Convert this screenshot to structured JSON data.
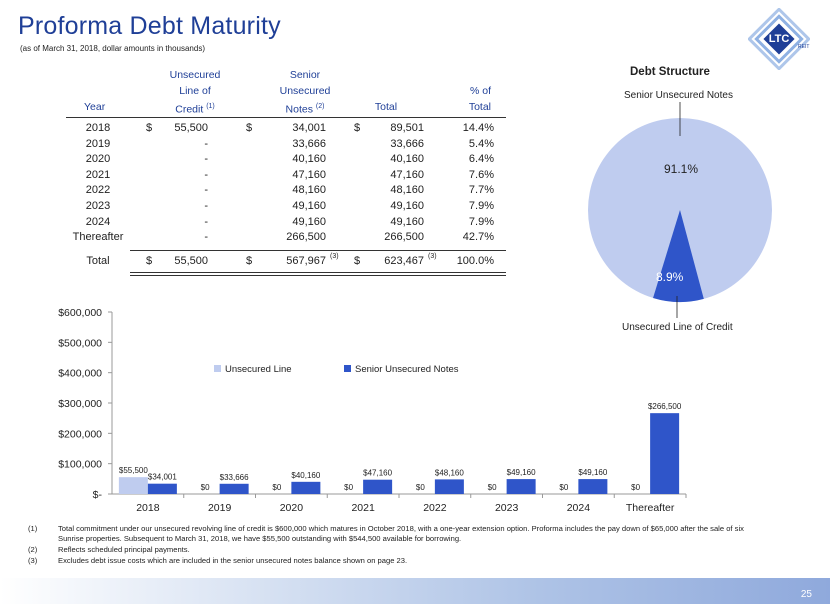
{
  "header": {
    "title": "Proforma Debt Maturity",
    "subtitle": "(as of March 31, 2018, dollar amounts in thousands)",
    "logo_text": "LTC",
    "logo_subtext": "REIT"
  },
  "table": {
    "headers": {
      "year": "Year",
      "unsecured_line1": "Unsecured",
      "unsecured_line2": "Line of",
      "unsecured_line3": "Credit",
      "unsecured_note": "(1)",
      "senior_line1": "Senior",
      "senior_line2": "Unsecured",
      "senior_line3": "Notes",
      "senior_note": "(2)",
      "total": "Total",
      "pct_line1": "% of",
      "pct_line2": "Total"
    },
    "rows": [
      {
        "year": "2018",
        "ulc_sym": "$",
        "ulc": "55,500",
        "sun_sym": "$",
        "sun": "34,001",
        "tot_sym": "$",
        "tot": "89,501",
        "pct": "14.4%"
      },
      {
        "year": "2019",
        "ulc_sym": "",
        "ulc": "-",
        "sun_sym": "",
        "sun": "33,666",
        "tot_sym": "",
        "tot": "33,666",
        "pct": "5.4%"
      },
      {
        "year": "2020",
        "ulc_sym": "",
        "ulc": "-",
        "sun_sym": "",
        "sun": "40,160",
        "tot_sym": "",
        "tot": "40,160",
        "pct": "6.4%"
      },
      {
        "year": "2021",
        "ulc_sym": "",
        "ulc": "-",
        "sun_sym": "",
        "sun": "47,160",
        "tot_sym": "",
        "tot": "47,160",
        "pct": "7.6%"
      },
      {
        "year": "2022",
        "ulc_sym": "",
        "ulc": "-",
        "sun_sym": "",
        "sun": "48,160",
        "tot_sym": "",
        "tot": "48,160",
        "pct": "7.7%"
      },
      {
        "year": "2023",
        "ulc_sym": "",
        "ulc": "-",
        "sun_sym": "",
        "sun": "49,160",
        "tot_sym": "",
        "tot": "49,160",
        "pct": "7.9%"
      },
      {
        "year": "2024",
        "ulc_sym": "",
        "ulc": "-",
        "sun_sym": "",
        "sun": "49,160",
        "tot_sym": "",
        "tot": "49,160",
        "pct": "7.9%"
      },
      {
        "year": "Thereafter",
        "ulc_sym": "",
        "ulc": "-",
        "sun_sym": "",
        "sun": "266,500",
        "tot_sym": "",
        "tot": "266,500",
        "pct": "42.7%"
      }
    ],
    "total_row": {
      "year": "Total",
      "ulc_sym": "$",
      "ulc": "55,500",
      "sun_sym": "$",
      "sun": "567,967",
      "sun_note": "(3)",
      "tot_sym": "$",
      "tot": "623,467",
      "tot_note": "(3)",
      "pct": "100.0%"
    }
  },
  "pie": {
    "title": "Debt Structure",
    "label_top": "Senior Unsecured Notes",
    "label_bottom": "Unsecured Line of Credit",
    "pct_large": "91.1%",
    "pct_small": "8.9%",
    "colors": {
      "large": "#bfccef",
      "small": "#2f55c9"
    }
  },
  "chart_data": {
    "type": "bar",
    "categories": [
      "2018",
      "2019",
      "2020",
      "2021",
      "2022",
      "2023",
      "2024",
      "Thereafter"
    ],
    "series": [
      {
        "name": "Unsecured Line",
        "values": [
          55500,
          0,
          0,
          0,
          0,
          0,
          0,
          0
        ],
        "labels": [
          "$55,500",
          "$0",
          "$0",
          "$0",
          "$0",
          "$0",
          "$0",
          "$0"
        ],
        "color": "#bfccef"
      },
      {
        "name": "Senior Unsecured Notes",
        "values": [
          34001,
          33666,
          40160,
          47160,
          48160,
          49160,
          49160,
          266500
        ],
        "labels": [
          "$34,001",
          "$33,666",
          "$40,160",
          "$47,160",
          "$48,160",
          "$49,160",
          "$49,160",
          "$266,500"
        ],
        "color": "#2f55c9"
      }
    ],
    "ylim": [
      0,
      600000
    ],
    "yticks": [
      0,
      100000,
      200000,
      300000,
      400000,
      500000,
      600000
    ],
    "ytick_labels": [
      "$-",
      "$100,000",
      "$200,000",
      "$300,000",
      "$400,000",
      "$500,000",
      "$600,000"
    ],
    "legend": "top-center"
  },
  "footnotes": [
    {
      "num": "(1)",
      "text": "Total commitment under our unsecured revolving line of credit is $600,000 which matures in October 2018, with a one-year extension option. Proforma includes the pay down of $65,000 after the sale of six Sunrise properties.  Subsequent to March 31, 2018, we have $55,500 outstanding with $544,500 available for borrowing."
    },
    {
      "num": "(2)",
      "text": "Reflects scheduled principal payments."
    },
    {
      "num": "(3)",
      "text": "Excludes debt issue costs which are included in the senior unsecured notes balance shown on page 23."
    }
  ],
  "page_number": "25"
}
